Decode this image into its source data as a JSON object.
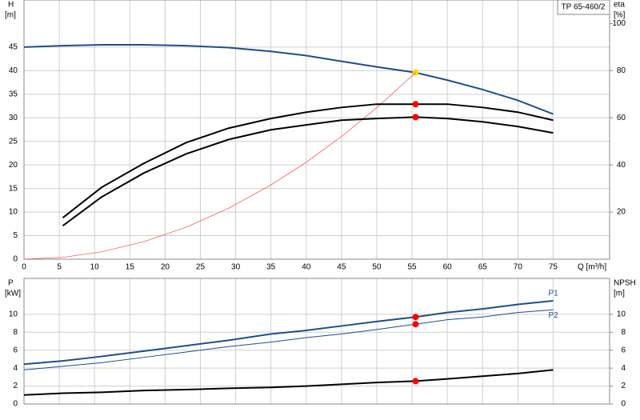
{
  "chart_data": [
    {
      "type": "line",
      "title": "TP 65-460/2",
      "y_label": "H",
      "y_unit": "[m]",
      "y2_label": "eta",
      "y2_unit": "[%]",
      "x_label": "Q [m³/h]",
      "x": [
        0,
        5.5,
        11,
        17,
        23,
        29,
        35,
        40,
        45,
        50,
        55.5,
        60,
        65,
        70,
        75
      ],
      "xlim": [
        0,
        83
      ],
      "xticks": [
        0,
        5,
        10,
        15,
        20,
        25,
        30,
        35,
        40,
        45,
        50,
        55,
        60,
        65,
        70,
        75
      ],
      "ylim": [
        0,
        55
      ],
      "yticks": [
        0,
        5,
        10,
        15,
        20,
        25,
        30,
        35,
        40,
        45
      ],
      "y2lim": [
        0,
        110
      ],
      "y2ticks": [
        20,
        40,
        60,
        80,
        100
      ],
      "grid": true,
      "operating_x": 55.5,
      "series": [
        {
          "color": "#1f4e8c",
          "width": 2,
          "marker_color": "#ffd700",
          "values": [
            45,
            45.3,
            45.5,
            45.5,
            45.3,
            44.9,
            44.1,
            43.2,
            42.0,
            40.8,
            39.6,
            38.0,
            36.0,
            33.7,
            30.8
          ]
        },
        {
          "color": "#ff4040",
          "width": 0.7,
          "values": [
            0,
            0.39,
            1.56,
            3.72,
            6.8,
            10.81,
            15.75,
            20.57,
            26.03,
            32.14,
            39.6,
            null,
            null,
            null,
            null
          ]
        },
        {
          "color": "#000000",
          "width": 2,
          "axis": "y2",
          "marker_color": "#ff0000",
          "values": [
            null,
            17.6,
            30.5,
            40.7,
            49.5,
            55.6,
            59.7,
            62.4,
            64.4,
            65.8,
            65.8,
            65.8,
            64.4,
            62.4,
            59
          ]
        },
        {
          "color": "#000000",
          "width": 2,
          "axis": "y2",
          "marker_color": "#ff0000",
          "values": [
            null,
            14.2,
            26.4,
            36.6,
            44.7,
            50.8,
            54.9,
            57,
            59,
            59.7,
            60.3,
            59.7,
            58.3,
            56.3,
            53.6
          ]
        }
      ]
    },
    {
      "type": "line",
      "y_label": "P",
      "y_unit": "[kW]",
      "y2_label": "NPSH",
      "y2_unit": "[m]",
      "x": [
        0,
        5.5,
        11,
        17,
        23,
        29,
        35,
        40,
        45,
        50,
        55.5,
        60,
        65,
        70,
        75
      ],
      "xlim": [
        0,
        83
      ],
      "ylim": [
        0,
        14
      ],
      "yticks": [
        0,
        2,
        4,
        6,
        8,
        10
      ],
      "y2lim": [
        0,
        14
      ],
      "y2ticks": [
        0,
        2,
        4,
        6,
        8,
        10
      ],
      "grid": true,
      "operating_x": 55.5,
      "series": [
        {
          "name": "P1",
          "color": "#1f4e8c",
          "width": 2,
          "marker_color": "#ff0000",
          "values": [
            4.44,
            4.8,
            5.3,
            5.9,
            6.5,
            7.1,
            7.8,
            8.2,
            8.7,
            9.2,
            9.7,
            10.2,
            10.6,
            11.1,
            11.5
          ]
        },
        {
          "name": "P2",
          "color": "#1f4e8c",
          "width": 1,
          "marker_color": "#ff0000",
          "values": [
            3.8,
            4.2,
            4.6,
            5.2,
            5.8,
            6.4,
            6.9,
            7.4,
            7.8,
            8.3,
            8.9,
            9.4,
            9.7,
            10.2,
            10.5
          ]
        },
        {
          "color": "#000000",
          "width": 2,
          "axis": "y2",
          "marker_color": "#ff0000",
          "values": [
            1.0,
            1.2,
            1.3,
            1.5,
            1.6,
            1.75,
            1.85,
            2.0,
            2.2,
            2.4,
            2.55,
            2.8,
            3.1,
            3.4,
            3.8
          ]
        }
      ]
    }
  ]
}
